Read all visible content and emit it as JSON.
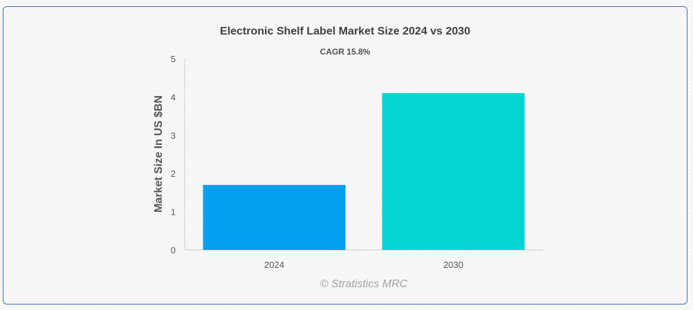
{
  "chart_data": {
    "type": "bar",
    "title": "Electronic Shelf Label Market Size 2024 vs 2030",
    "subtitle": "CAGR 15.8%",
    "ylabel": "Market Size In US $BN",
    "xlabel": "",
    "categories": [
      "2024",
      "2030"
    ],
    "values": [
      1.7,
      4.1
    ],
    "bar_colors": [
      "#05a0ee",
      "#02d4d2"
    ],
    "ylim": [
      0,
      5
    ],
    "yticks": [
      "0",
      "1",
      "2",
      "3",
      "4",
      "5"
    ],
    "grid": false,
    "legend": "none"
  },
  "watermark": "© Stratistics MRC",
  "colors": {
    "frame_border": "#3b6fb5",
    "axis_line": "#cccccc"
  }
}
